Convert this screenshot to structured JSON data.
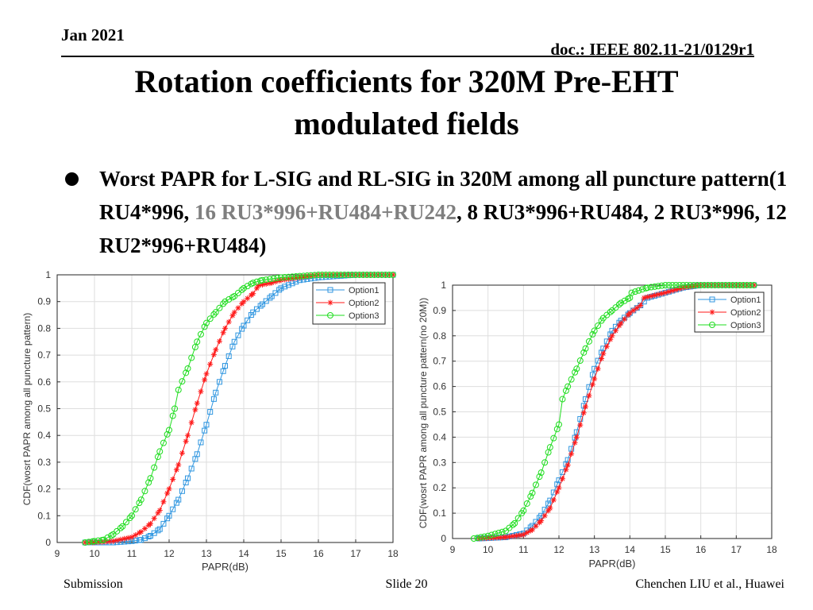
{
  "header": {
    "date": "Jan 2021",
    "doc": "doc.: IEEE 802.11-21/0129r1"
  },
  "title": {
    "line1": "Rotation coefficients for 320M Pre-EHT",
    "line2": "modulated fields"
  },
  "bullet": {
    "part1": "Worst PAPR for L-SIG and RL-SIG in 320M among all puncture pattern(1 RU4*996, ",
    "part2_gray": "16 RU3*996+RU484+RU242",
    "part3": ", 8 RU3*996+RU484, 2 RU3*996, 12 RU2*996+RU484)",
    "gray_color": "#7f7f7f"
  },
  "footer": {
    "left": "Submission",
    "center": "Slide 20",
    "right": "Chenchen LIU et al., Huawei"
  },
  "chart_data": [
    {
      "type": "line",
      "xlabel": "PAPR(dB)",
      "ylabel": "CDF(wosrt PAPR among all puncture pattern)",
      "xlim": [
        9,
        18
      ],
      "ylim": [
        0,
        1
      ],
      "xticks": [
        "9",
        "10",
        "11",
        "12",
        "13",
        "14",
        "15",
        "16",
        "17",
        "18"
      ],
      "yticks": [
        "0",
        "0.1",
        "0.2",
        "0.3",
        "0.4",
        "0.5",
        "0.6",
        "0.7",
        "0.8",
        "0.9",
        "1"
      ],
      "grid": true,
      "legend_position": "top-right",
      "series": [
        {
          "name": "Option1",
          "color": "#2f96e0",
          "marker": "square",
          "x": [
            9.75,
            10,
            10.5,
            11,
            11.25,
            11.5,
            11.75,
            12,
            12.25,
            12.5,
            12.75,
            13,
            13.25,
            13.5,
            13.75,
            14,
            14.25,
            14.5,
            14.75,
            15,
            15.5,
            16,
            17,
            18
          ],
          "y": [
            0,
            0,
            0,
            0.005,
            0.01,
            0.025,
            0.05,
            0.1,
            0.16,
            0.24,
            0.33,
            0.44,
            0.56,
            0.66,
            0.75,
            0.81,
            0.86,
            0.89,
            0.92,
            0.95,
            0.98,
            0.99,
            1,
            1
          ]
        },
        {
          "name": "Option2",
          "color": "#ff1a1a",
          "marker": "asterisk",
          "x": [
            9.75,
            10,
            10.5,
            11,
            11.25,
            11.5,
            11.75,
            12,
            12.25,
            12.5,
            12.75,
            13,
            13.25,
            13.5,
            13.75,
            14,
            14.25,
            14.4,
            14.75,
            15,
            15.5,
            16,
            18
          ],
          "y": [
            0,
            0,
            0.005,
            0.02,
            0.04,
            0.07,
            0.12,
            0.2,
            0.29,
            0.4,
            0.52,
            0.63,
            0.72,
            0.8,
            0.86,
            0.9,
            0.93,
            0.96,
            0.97,
            0.98,
            0.99,
            1,
            1
          ]
        },
        {
          "name": "Option3",
          "color": "#1fdd1f",
          "marker": "circle",
          "x": [
            9.75,
            10,
            10.25,
            10.5,
            10.75,
            11,
            11.25,
            11.5,
            11.75,
            12,
            12.15,
            12.25,
            12.5,
            12.75,
            13,
            13.25,
            13.5,
            13.75,
            14,
            14.25,
            14.5,
            15,
            16,
            18
          ],
          "y": [
            0,
            0.005,
            0.01,
            0.03,
            0.06,
            0.1,
            0.16,
            0.24,
            0.34,
            0.42,
            0.5,
            0.57,
            0.65,
            0.75,
            0.82,
            0.86,
            0.9,
            0.92,
            0.95,
            0.97,
            0.98,
            0.99,
            1,
            1
          ]
        }
      ]
    },
    {
      "type": "line",
      "xlabel": "PAPR(dB)",
      "ylabel": "CDF(wosrt PAPR among all puncture pattern(no 20M))",
      "xlim": [
        9,
        18
      ],
      "ylim": [
        0,
        1
      ],
      "xticks": [
        "9",
        "10",
        "11",
        "12",
        "13",
        "14",
        "15",
        "16",
        "17",
        "18"
      ],
      "yticks": [
        "0",
        "0.1",
        "0.2",
        "0.3",
        "0.4",
        "0.5",
        "0.6",
        "0.7",
        "0.8",
        "0.9",
        "1"
      ],
      "grid": true,
      "legend_position": "top-right",
      "series": [
        {
          "name": "Option1",
          "color": "#2f96e0",
          "marker": "square",
          "x": [
            9.75,
            10.5,
            11,
            11.25,
            11.5,
            11.75,
            12,
            12.25,
            12.5,
            12.75,
            13,
            13.25,
            13.5,
            13.75,
            14,
            14.3,
            14.5,
            15,
            15.5,
            16,
            17.5
          ],
          "y": [
            0,
            0.005,
            0.02,
            0.05,
            0.09,
            0.15,
            0.23,
            0.31,
            0.42,
            0.55,
            0.67,
            0.75,
            0.82,
            0.86,
            0.89,
            0.92,
            0.95,
            0.97,
            0.99,
            1,
            1
          ]
        },
        {
          "name": "Option2",
          "color": "#ff1a1a",
          "marker": "asterisk",
          "x": [
            9.75,
            10.5,
            11,
            11.25,
            11.5,
            11.75,
            12,
            12.25,
            12.5,
            12.75,
            13,
            13.25,
            13.5,
            13.75,
            14,
            14.3,
            14.4,
            15,
            15.5,
            16,
            17.5
          ],
          "y": [
            0,
            0.005,
            0.015,
            0.035,
            0.07,
            0.12,
            0.2,
            0.29,
            0.4,
            0.52,
            0.63,
            0.73,
            0.8,
            0.85,
            0.89,
            0.92,
            0.95,
            0.97,
            0.99,
            1,
            1
          ]
        },
        {
          "name": "Option3",
          "color": "#1fdd1f",
          "marker": "circle",
          "x": [
            9.6,
            10,
            10.5,
            10.75,
            11,
            11.25,
            11.5,
            11.75,
            12,
            12.1,
            12.25,
            12.5,
            12.75,
            13,
            13.25,
            13.5,
            13.75,
            14,
            14.05,
            14.5,
            15,
            17.5
          ],
          "y": [
            0,
            0.01,
            0.03,
            0.06,
            0.11,
            0.18,
            0.26,
            0.36,
            0.45,
            0.55,
            0.6,
            0.67,
            0.75,
            0.82,
            0.87,
            0.9,
            0.93,
            0.95,
            0.97,
            0.99,
            1,
            1
          ]
        }
      ]
    }
  ]
}
